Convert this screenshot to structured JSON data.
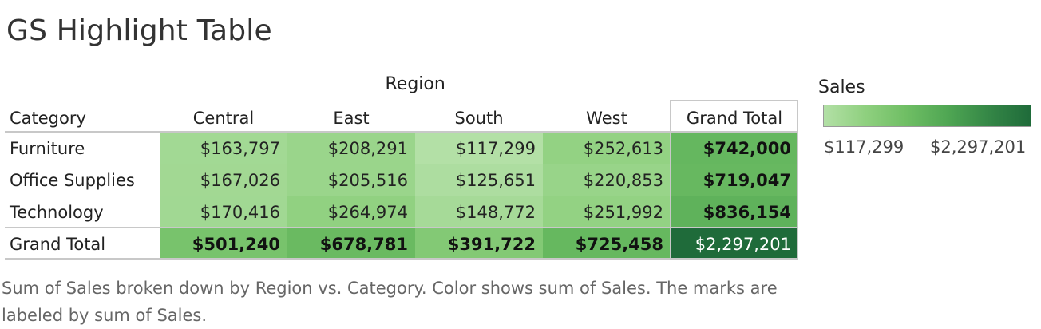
{
  "title": "GS Highlight Table",
  "caption": "Sum of Sales broken down by Region vs. Category.  Color shows sum of Sales.  The marks are labeled by sum of Sales.",
  "chart_data": {
    "type": "heatmap",
    "column_group_label": "Region",
    "row_header_label": "Category",
    "columns": [
      "Central",
      "East",
      "South",
      "West"
    ],
    "grand_total_label": "Grand Total",
    "rows": [
      {
        "category": "Furniture",
        "values": [
          163797,
          208291,
          117299,
          252613
        ],
        "labels": [
          "$163,797",
          "$208,291",
          "$117,299",
          "$252,613"
        ],
        "total": 742000,
        "total_label": "$742,000"
      },
      {
        "category": "Office Supplies",
        "values": [
          167026,
          205516,
          125651,
          220853
        ],
        "labels": [
          "$167,026",
          "$205,516",
          "$125,651",
          "$220,853"
        ],
        "total": 719047,
        "total_label": "$719,047"
      },
      {
        "category": "Technology",
        "values": [
          170416,
          264974,
          148772,
          251992
        ],
        "labels": [
          "$170,416",
          "$264,974",
          "$148,772",
          "$251,992"
        ],
        "total": 836154,
        "total_label": "$836,154"
      }
    ],
    "column_totals": {
      "values": [
        501240,
        678781,
        391722,
        725458
      ],
      "labels": [
        "$501,240",
        "$678,781",
        "$391,722",
        "$725,458"
      ],
      "total": 2297201,
      "total_label": "$2,297,201"
    },
    "color_scale": {
      "title": "Sales",
      "min": 117299,
      "max": 2297201,
      "min_label": "$117,299",
      "max_label": "$2,297,201",
      "stops": [
        "#b3e0a6",
        "#8fd07f",
        "#6fbe64",
        "#4fa653",
        "#348646",
        "#1f6b3a"
      ]
    }
  }
}
